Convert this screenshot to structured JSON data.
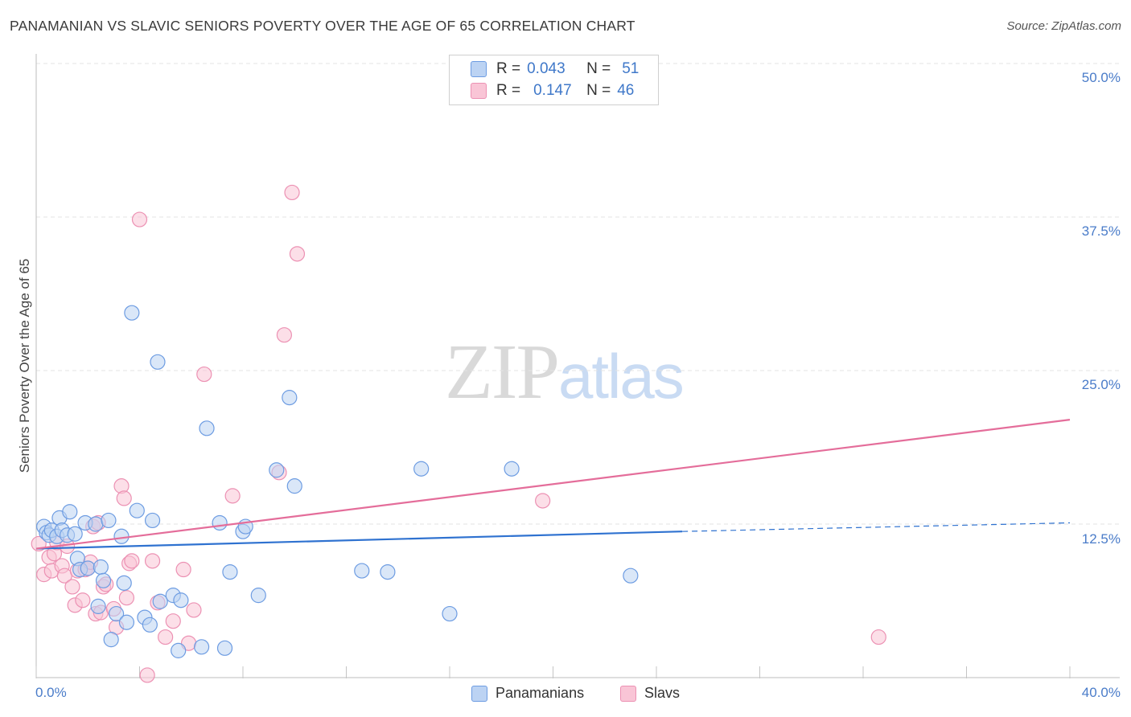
{
  "title": "PANAMANIAN VS SLAVIC SENIORS POVERTY OVER THE AGE OF 65 CORRELATION CHART",
  "source": "Source: ZipAtlas.com",
  "watermark": {
    "zip": "ZIP",
    "atlas": "atlas"
  },
  "legend_top": {
    "rows": [
      {
        "r_label": "R =",
        "r_value": "0.043",
        "n_label": "N =",
        "n_value": "51"
      },
      {
        "r_label": "R =",
        "r_value": "0.147",
        "n_label": "N =",
        "n_value": "46"
      }
    ]
  },
  "legend_bottom": {
    "items": [
      "Panamanians",
      "Slavs"
    ]
  },
  "colors": {
    "blue_fill": "#bcd3f3",
    "blue_stroke": "#6d9ce2",
    "blue_line": "#2f72d0",
    "pink_fill": "#f9c5d6",
    "pink_stroke": "#ec91b3",
    "pink_line": "#e46d9a",
    "grid": "#e3e3e3",
    "tick_text": "#4a7cc9"
  },
  "chart_data": {
    "type": "scatter",
    "title": "PANAMANIAN VS SLAVIC SENIORS POVERTY OVER THE AGE OF 65 CORRELATION CHART",
    "xlabel": "",
    "ylabel": "Seniors Poverty Over the Age of 65",
    "xlim": [
      0,
      40
    ],
    "ylim": [
      0,
      50
    ],
    "x_tick_labels": [
      "0.0%",
      "40.0%"
    ],
    "y_ticks": [
      12.5,
      25.0,
      37.5,
      50.0
    ],
    "y_tick_labels": [
      "12.5%",
      "25.0%",
      "37.5%",
      "50.0%"
    ],
    "grid": true,
    "legend_position": "bottom",
    "series": [
      {
        "name": "Panamanians",
        "color": "#6d9ce2",
        "r": 0.043,
        "n": 51,
        "trend": {
          "x0": 0,
          "y0": 10.5,
          "x1": 25,
          "y1": 11.9,
          "dashed_to_x": 40,
          "dashed_to_y": 12.6
        },
        "points": [
          [
            0.3,
            12.3
          ],
          [
            0.4,
            11.8
          ],
          [
            0.5,
            11.6
          ],
          [
            0.6,
            12.0
          ],
          [
            0.8,
            11.5
          ],
          [
            0.9,
            13.0
          ],
          [
            1.0,
            12.0
          ],
          [
            1.2,
            11.6
          ],
          [
            1.3,
            13.5
          ],
          [
            1.5,
            11.7
          ],
          [
            1.6,
            9.7
          ],
          [
            1.7,
            8.8
          ],
          [
            1.9,
            12.6
          ],
          [
            2.0,
            8.9
          ],
          [
            2.3,
            12.5
          ],
          [
            2.4,
            5.8
          ],
          [
            2.5,
            9.0
          ],
          [
            2.6,
            7.9
          ],
          [
            2.8,
            12.8
          ],
          [
            2.9,
            3.1
          ],
          [
            3.1,
            5.2
          ],
          [
            3.3,
            11.5
          ],
          [
            3.4,
            7.7
          ],
          [
            3.5,
            4.5
          ],
          [
            3.7,
            29.7
          ],
          [
            3.9,
            13.6
          ],
          [
            4.2,
            4.9
          ],
          [
            4.4,
            4.3
          ],
          [
            4.5,
            12.8
          ],
          [
            4.7,
            25.7
          ],
          [
            4.8,
            6.2
          ],
          [
            5.3,
            6.7
          ],
          [
            5.5,
            2.2
          ],
          [
            5.6,
            6.3
          ],
          [
            6.4,
            2.5
          ],
          [
            6.6,
            20.3
          ],
          [
            7.1,
            12.6
          ],
          [
            7.3,
            2.4
          ],
          [
            7.5,
            8.6
          ],
          [
            8.0,
            11.9
          ],
          [
            8.1,
            12.3
          ],
          [
            8.6,
            6.7
          ],
          [
            9.3,
            16.9
          ],
          [
            9.8,
            22.8
          ],
          [
            10.0,
            15.6
          ],
          [
            12.6,
            8.7
          ],
          [
            13.6,
            8.6
          ],
          [
            14.9,
            17.0
          ],
          [
            16.0,
            5.2
          ],
          [
            18.4,
            17.0
          ],
          [
            23.0,
            8.3
          ]
        ]
      },
      {
        "name": "Slavs",
        "color": "#ec91b3",
        "r": 0.147,
        "n": 46,
        "trend": {
          "x0": 0,
          "y0": 10.5,
          "x1": 40,
          "y1": 21.0
        },
        "points": [
          [
            0.1,
            10.9
          ],
          [
            0.3,
            8.4
          ],
          [
            0.5,
            9.8
          ],
          [
            0.6,
            8.7
          ],
          [
            0.7,
            10.1
          ],
          [
            0.8,
            11.0
          ],
          [
            1.0,
            9.1
          ],
          [
            1.1,
            8.3
          ],
          [
            1.2,
            10.7
          ],
          [
            1.4,
            7.4
          ],
          [
            1.5,
            5.9
          ],
          [
            1.6,
            8.7
          ],
          [
            1.8,
            6.3
          ],
          [
            1.9,
            8.8
          ],
          [
            2.0,
            8.9
          ],
          [
            2.1,
            9.4
          ],
          [
            2.2,
            12.3
          ],
          [
            2.3,
            5.2
          ],
          [
            2.4,
            12.6
          ],
          [
            2.5,
            5.3
          ],
          [
            2.6,
            7.4
          ],
          [
            2.7,
            7.6
          ],
          [
            3.0,
            5.6
          ],
          [
            3.1,
            4.1
          ],
          [
            3.3,
            15.6
          ],
          [
            3.4,
            14.6
          ],
          [
            3.5,
            6.5
          ],
          [
            3.6,
            9.3
          ],
          [
            3.7,
            9.5
          ],
          [
            4.0,
            37.3
          ],
          [
            4.3,
            0.2
          ],
          [
            4.5,
            9.5
          ],
          [
            4.7,
            6.1
          ],
          [
            5.0,
            3.3
          ],
          [
            5.3,
            4.6
          ],
          [
            5.7,
            8.8
          ],
          [
            5.9,
            2.8
          ],
          [
            6.1,
            5.5
          ],
          [
            6.5,
            24.7
          ],
          [
            7.6,
            14.8
          ],
          [
            9.4,
            16.7
          ],
          [
            9.6,
            27.9
          ],
          [
            9.9,
            39.5
          ],
          [
            10.1,
            34.5
          ],
          [
            19.6,
            14.4
          ],
          [
            32.6,
            3.3
          ]
        ]
      }
    ]
  }
}
